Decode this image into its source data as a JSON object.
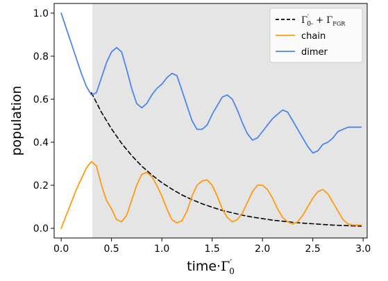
{
  "chart_data": {
    "type": "line",
    "xlabel": {
      "prefix": "time·",
      "symbol": "Γ",
      "prime": "′",
      "sub": "0"
    },
    "ylabel": "population",
    "xlim": [
      -0.07,
      3.04
    ],
    "ylim": [
      -0.045,
      1.045
    ],
    "xticks": [
      0.0,
      0.5,
      1.0,
      1.5,
      2.0,
      2.5,
      3.0
    ],
    "xtick_labels": [
      "0.0",
      "0.5",
      "1.0",
      "1.5",
      "2.0",
      "2.5",
      "3.0"
    ],
    "yticks": [
      0.0,
      0.2,
      0.4,
      0.6,
      0.8,
      1.0
    ],
    "ytick_labels": [
      "0.0",
      "0.2",
      "0.4",
      "0.6",
      "0.8",
      "1.0"
    ],
    "grid": false,
    "legend_position": "top-right",
    "shaded_region": {
      "x_start": 0.31,
      "x_end": 3.04,
      "color": "#e5e5e5"
    },
    "series": [
      {
        "name": {
          "part1": "Γ",
          "part1_prime": "′",
          "part1_sub": "0-",
          "plus": " + ",
          "part2": "Γ",
          "part2_sub": "FGR"
        },
        "color": "#000000",
        "style": "dashed",
        "x": [
          0.3,
          0.4,
          0.5,
          0.6,
          0.7,
          0.8,
          0.9,
          1.0,
          1.1,
          1.2,
          1.3,
          1.4,
          1.5,
          1.6,
          1.7,
          1.8,
          1.9,
          2.0,
          2.1,
          2.2,
          2.3,
          2.4,
          2.5,
          2.6,
          2.7,
          2.8,
          2.9,
          2.98
        ],
        "y": [
          0.63,
          0.539,
          0.462,
          0.395,
          0.338,
          0.289,
          0.248,
          0.212,
          0.182,
          0.155,
          0.133,
          0.114,
          0.098,
          0.083,
          0.072,
          0.061,
          0.052,
          0.045,
          0.038,
          0.033,
          0.028,
          0.024,
          0.021,
          0.018,
          0.015,
          0.013,
          0.011,
          0.01
        ]
      },
      {
        "name": "chain",
        "color": "#ff9a0e",
        "style": "solid",
        "x": [
          0.0,
          0.05,
          0.1,
          0.15,
          0.2,
          0.25,
          0.3,
          0.35,
          0.4,
          0.45,
          0.5,
          0.55,
          0.6,
          0.65,
          0.7,
          0.75,
          0.8,
          0.85,
          0.9,
          0.95,
          1.0,
          1.05,
          1.1,
          1.15,
          1.2,
          1.25,
          1.3,
          1.35,
          1.4,
          1.45,
          1.5,
          1.55,
          1.6,
          1.65,
          1.7,
          1.75,
          1.8,
          1.85,
          1.9,
          1.95,
          2.0,
          2.05,
          2.1,
          2.15,
          2.2,
          2.25,
          2.3,
          2.35,
          2.4,
          2.45,
          2.5,
          2.55,
          2.6,
          2.65,
          2.7,
          2.75,
          2.8,
          2.85,
          2.9,
          2.95,
          2.98
        ],
        "y": [
          0.0,
          0.06,
          0.12,
          0.18,
          0.23,
          0.28,
          0.31,
          0.29,
          0.2,
          0.13,
          0.09,
          0.04,
          0.03,
          0.06,
          0.13,
          0.2,
          0.25,
          0.26,
          0.24,
          0.2,
          0.15,
          0.09,
          0.04,
          0.025,
          0.035,
          0.08,
          0.15,
          0.2,
          0.22,
          0.225,
          0.2,
          0.15,
          0.09,
          0.05,
          0.03,
          0.04,
          0.07,
          0.12,
          0.17,
          0.2,
          0.2,
          0.18,
          0.14,
          0.09,
          0.05,
          0.03,
          0.02,
          0.03,
          0.06,
          0.1,
          0.14,
          0.17,
          0.18,
          0.16,
          0.12,
          0.08,
          0.04,
          0.02,
          0.015,
          0.015,
          0.015
        ]
      },
      {
        "name": "dimer",
        "color": "#4a86e8",
        "style": "solid",
        "x": [
          0.0,
          0.05,
          0.1,
          0.15,
          0.2,
          0.25,
          0.3,
          0.35,
          0.4,
          0.45,
          0.5,
          0.55,
          0.6,
          0.65,
          0.7,
          0.75,
          0.8,
          0.85,
          0.9,
          0.95,
          1.0,
          1.05,
          1.1,
          1.15,
          1.2,
          1.25,
          1.3,
          1.35,
          1.4,
          1.45,
          1.5,
          1.55,
          1.6,
          1.65,
          1.7,
          1.75,
          1.8,
          1.85,
          1.9,
          1.95,
          2.0,
          2.05,
          2.1,
          2.15,
          2.2,
          2.25,
          2.3,
          2.35,
          2.4,
          2.45,
          2.5,
          2.55,
          2.6,
          2.65,
          2.7,
          2.75,
          2.8,
          2.85,
          2.9,
          2.95,
          2.98
        ],
        "y": [
          1.0,
          0.93,
          0.86,
          0.79,
          0.72,
          0.66,
          0.62,
          0.63,
          0.7,
          0.77,
          0.82,
          0.84,
          0.82,
          0.74,
          0.65,
          0.58,
          0.56,
          0.58,
          0.62,
          0.65,
          0.67,
          0.7,
          0.72,
          0.71,
          0.64,
          0.57,
          0.5,
          0.46,
          0.46,
          0.48,
          0.53,
          0.57,
          0.61,
          0.62,
          0.6,
          0.55,
          0.49,
          0.44,
          0.41,
          0.42,
          0.45,
          0.48,
          0.51,
          0.53,
          0.55,
          0.54,
          0.5,
          0.46,
          0.42,
          0.38,
          0.35,
          0.36,
          0.39,
          0.4,
          0.42,
          0.45,
          0.46,
          0.47,
          0.47,
          0.47,
          0.47
        ]
      }
    ]
  }
}
